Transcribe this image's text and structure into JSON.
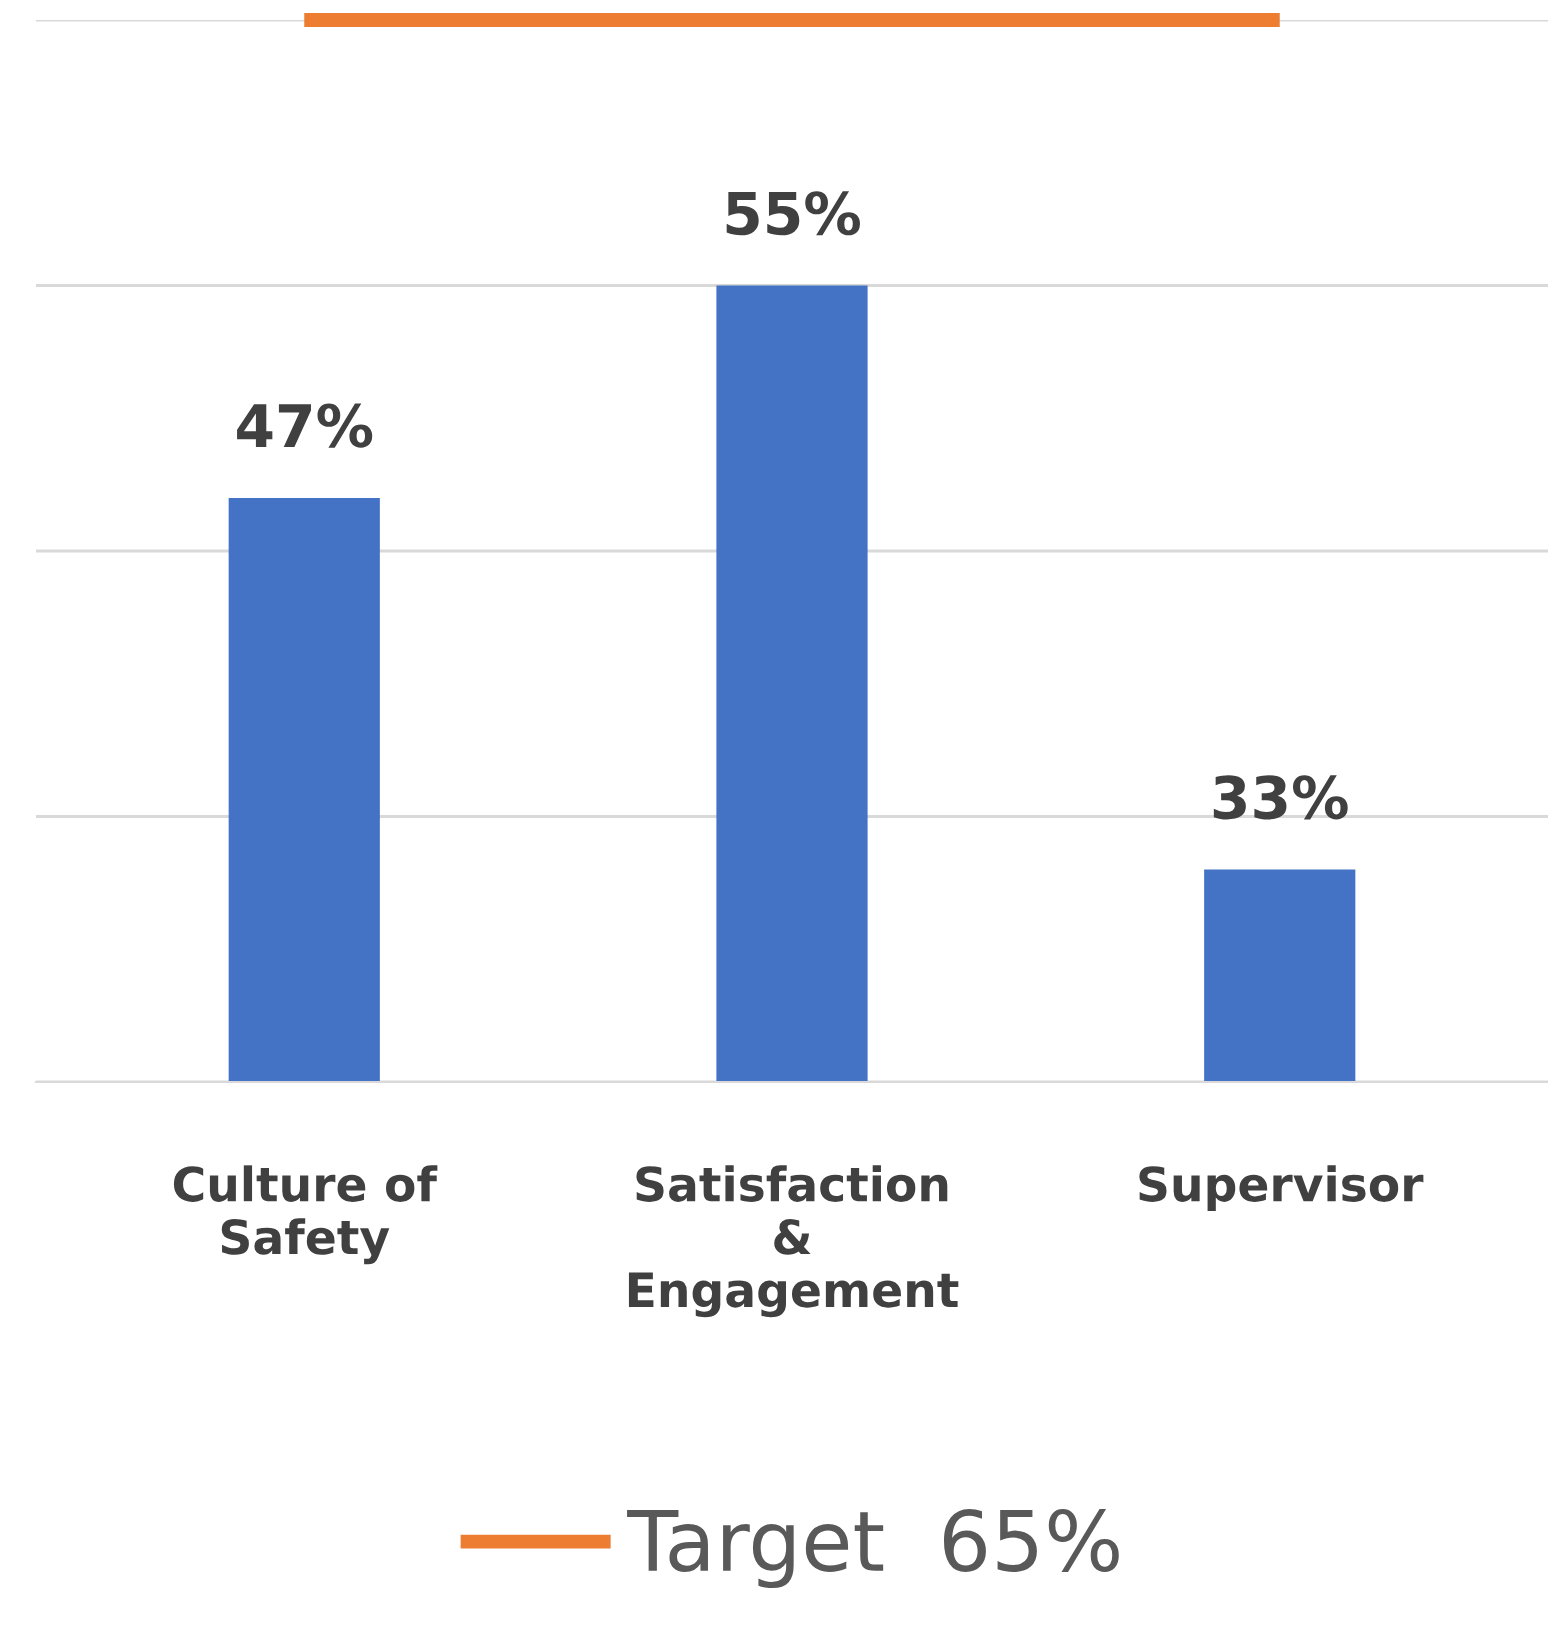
{
  "chart_data": {
    "type": "bar",
    "categories": [
      "Culture of\nSafety",
      "Satisfaction\n&\nEngagement",
      "Supervisor"
    ],
    "series": [
      {
        "color": "#4472c4",
        "values": [
          47,
          55,
          33
        ],
        "value_labels": [
          "47%",
          "55%",
          "33%"
        ]
      },
      {
        "type": "line",
        "name": "Target  65%",
        "color": "#ed7d31",
        "values": [
          65,
          65,
          65
        ]
      }
    ],
    "ylim": [
      25,
      65
    ],
    "yticks": [
      {
        "value": 25,
        "label": null
      },
      {
        "value": 35,
        "label": null
      },
      {
        "value": 45,
        "label": null
      },
      {
        "value": 55,
        "label": null
      },
      {
        "value": 65,
        "label": null
      }
    ],
    "grid": "y",
    "legend": "bottom",
    "tick_labels": "x",
    "marker": "none",
    "line_style": "solid"
  }
}
